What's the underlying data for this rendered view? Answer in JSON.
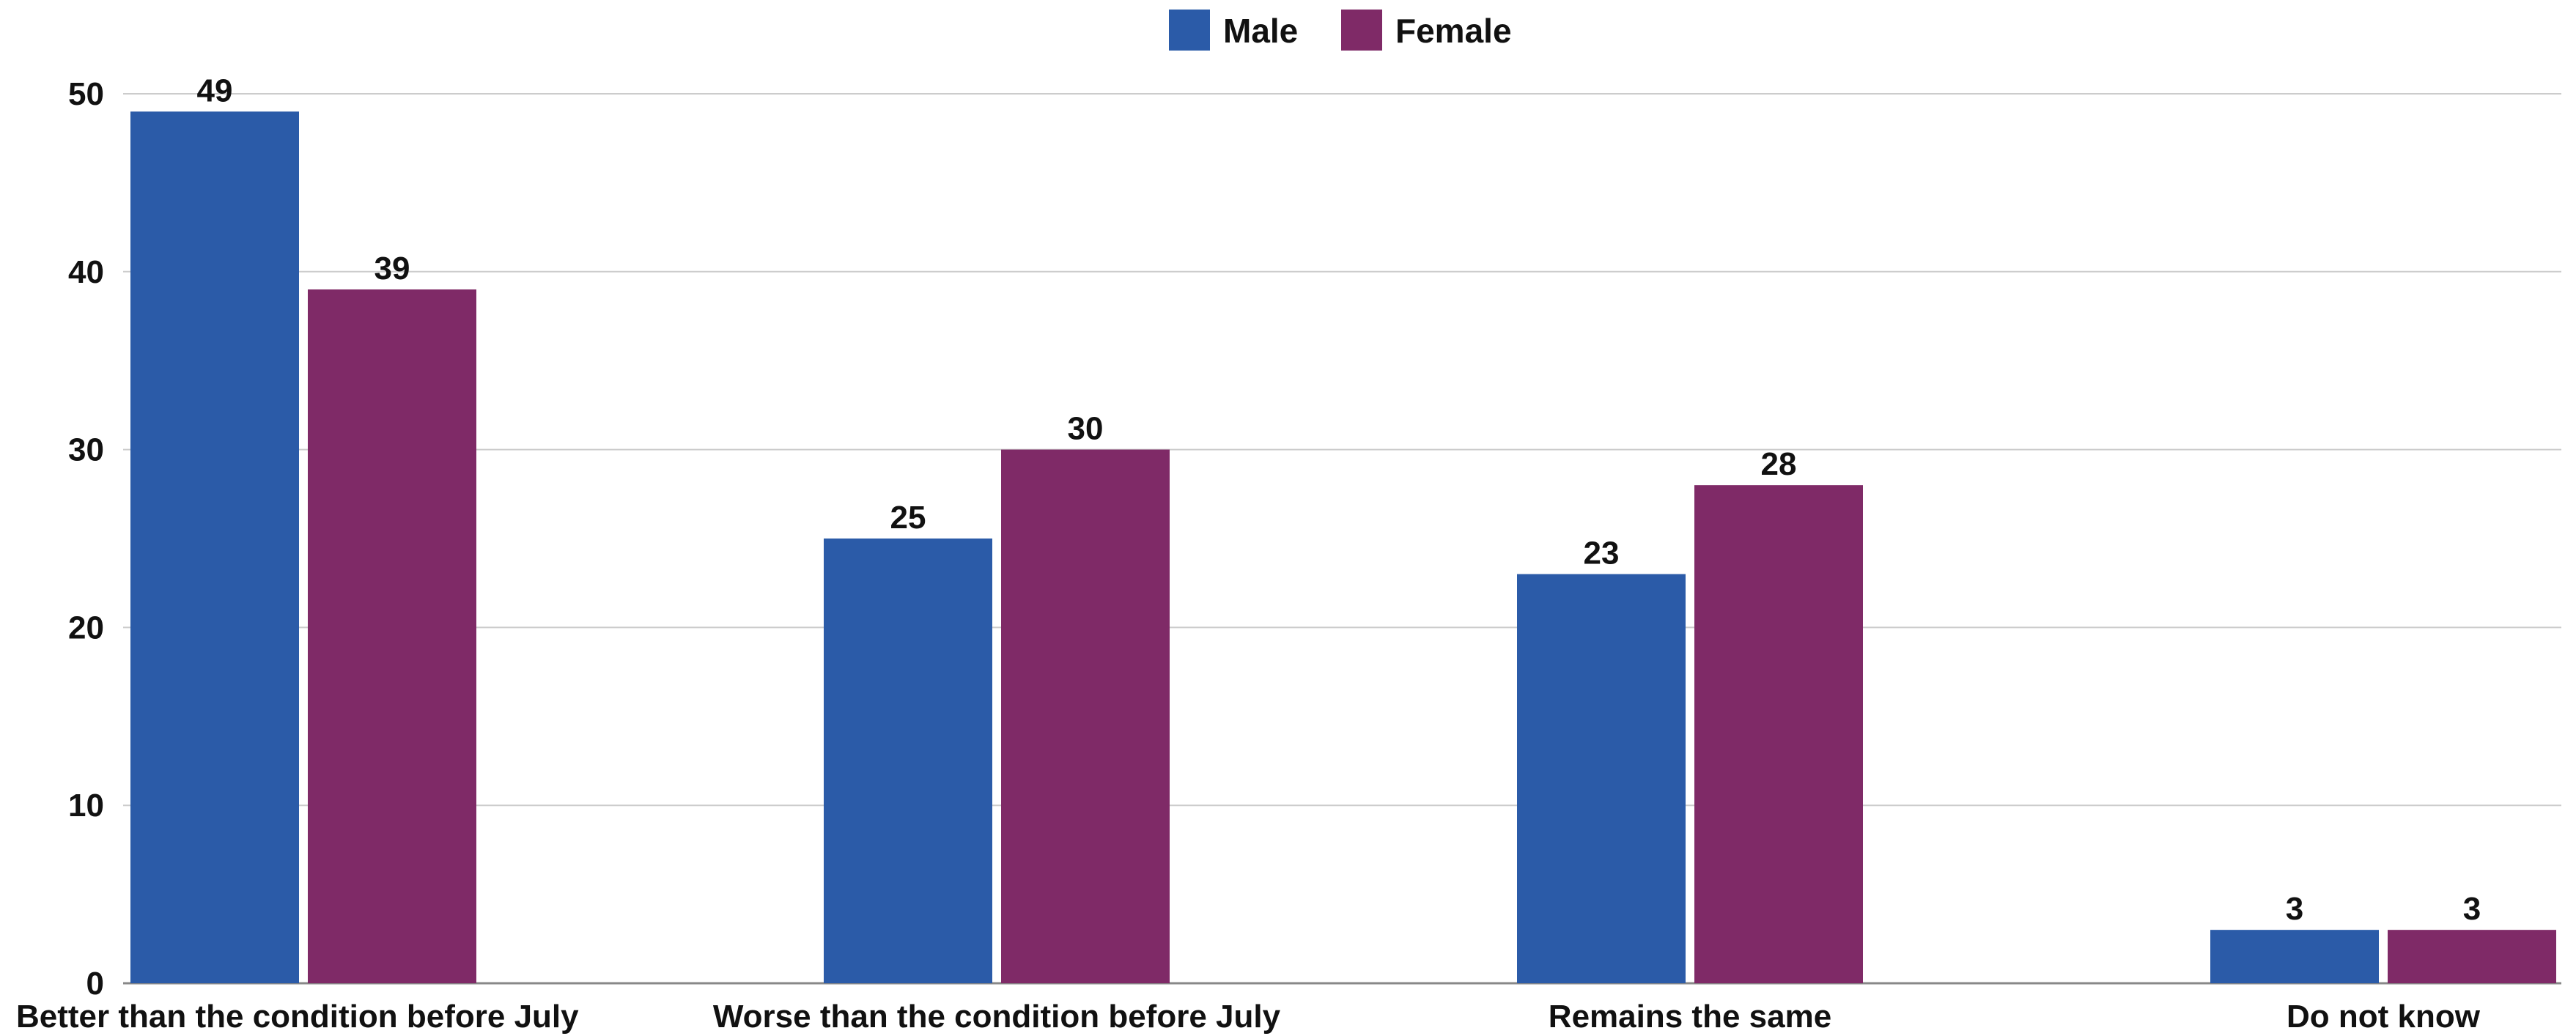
{
  "chart_data": {
    "type": "bar",
    "categories": [
      "Better than the condition before July",
      "Worse than the condition before July",
      "Remains the same",
      "Do not know"
    ],
    "series": [
      {
        "name": "Male",
        "values": [
          49,
          25,
          23,
          3
        ],
        "color": "#2b5ba8"
      },
      {
        "name": "Female",
        "values": [
          39,
          30,
          28,
          3
        ],
        "color": "#7f2a67"
      }
    ],
    "title": "",
    "xlabel": "",
    "ylabel": "",
    "ylim": [
      0,
      50
    ],
    "yticks": [
      0,
      10,
      20,
      30,
      40,
      50
    ],
    "grid": true,
    "legend": "top-center",
    "data_labels": true
  }
}
